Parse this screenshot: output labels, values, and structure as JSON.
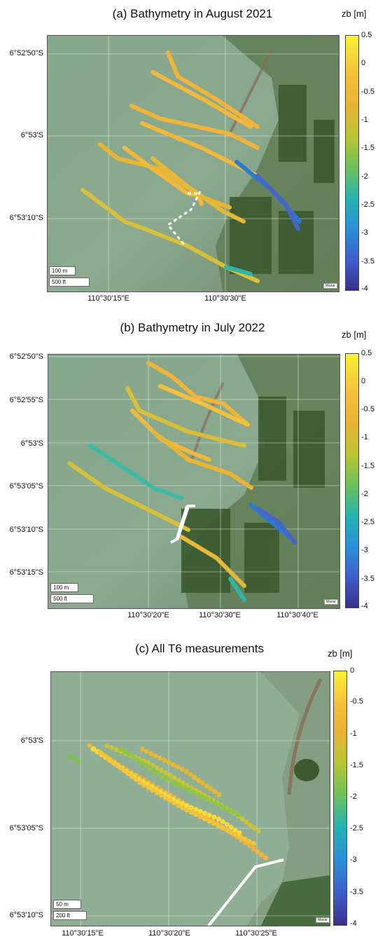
{
  "panels": [
    {
      "title": "(a) Bathymetry in August 2021",
      "lat_labels": [
        "6°52'50\"S",
        "6°53'S",
        "6°53'10\"S"
      ],
      "lon_labels": [
        "110°30'15\"E",
        "110°30'30\"E"
      ],
      "cb_label": "zb [m]",
      "cb_ticks": [
        "0.5",
        "0",
        "-0.5",
        "-1",
        "-1.5",
        "-2",
        "-2.5",
        "-3",
        "-3.5",
        "-4"
      ],
      "scale": [
        "100 m",
        "500 ft"
      ],
      "credit": "Maxar"
    },
    {
      "title": "(b) Bathymetry in July 2022",
      "lat_labels": [
        "6°52'50\"S",
        "6°52'55\"S",
        "6°53'S",
        "6°53'05\"S",
        "6°53'10\"S",
        "6°53'15\"S"
      ],
      "lon_labels": [
        "110°30'20\"E",
        "110°30'30\"E",
        "110°30'40\"E"
      ],
      "cb_label": "zb [m]",
      "cb_ticks": [
        "0.5",
        "0",
        "-0.5",
        "-1",
        "-1.5",
        "-2",
        "-2.5",
        "-3",
        "-3.5",
        "-4"
      ],
      "scale": [
        "100 m",
        "500 ft"
      ],
      "credit": "Maxar"
    },
    {
      "title": "(c) All T6 measurements",
      "lat_labels": [
        "6°53'S",
        "6°53'05\"S",
        "6°53'10\"S"
      ],
      "lon_labels": [
        "110°30'15\"E",
        "110°30'20\"E",
        "110°30'25\"E"
      ],
      "cb_label": "zb [m]",
      "cb_ticks": [
        "0",
        "-0.5",
        "-1",
        "-1.5",
        "-2",
        "-2.5",
        "-3",
        "-3.5",
        "-4"
      ],
      "scale": [
        "50 m",
        "200 ft"
      ],
      "credit": "Maxar"
    }
  ],
  "colors": {
    "shallow": "#f7e83a",
    "mid": "#f2b83c",
    "deep": "#3b3f9b",
    "transect": "#ffffff"
  }
}
